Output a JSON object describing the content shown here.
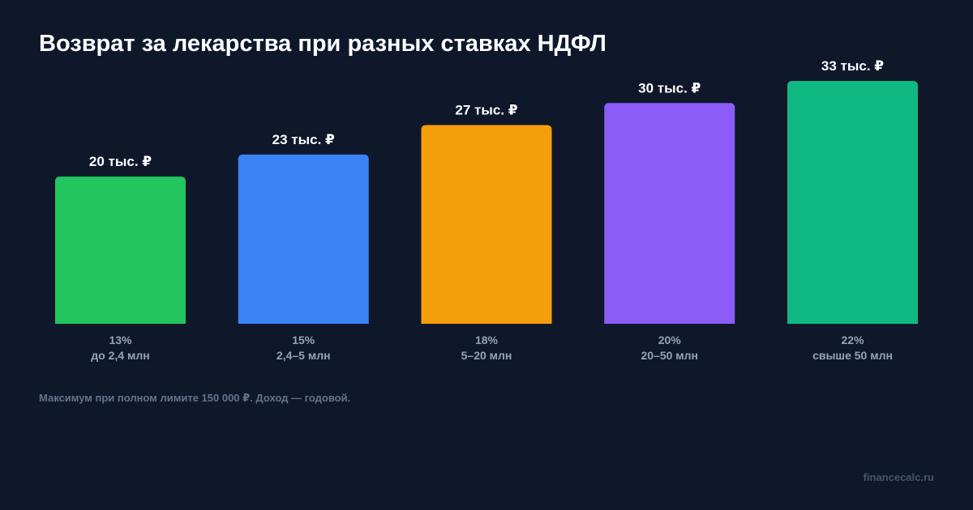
{
  "title": "Возврат за лекарства при разных ставках НДФЛ",
  "footnote": "Максимум при полном лимите 150 000 ₽. Доход — годовой.",
  "watermark": "financecalc.ru",
  "colors": {
    "background": "#0f172a",
    "label_muted": "#94a3b8"
  },
  "chart_data": {
    "type": "bar",
    "title": "Возврат за лекарства при разных ставках НДФЛ",
    "value_unit": "тыс. ₽",
    "ylim": [
      0,
      33
    ],
    "grid": false,
    "categories": [
      {
        "rate": "13%",
        "income": "до 2,4 млн"
      },
      {
        "rate": "15%",
        "income": "2,4–5 млн"
      },
      {
        "rate": "18%",
        "income": "5–20 млн"
      },
      {
        "rate": "20%",
        "income": "20–50 млн"
      },
      {
        "rate": "22%",
        "income": "свыше 50 млн"
      }
    ],
    "values": [
      20,
      23,
      27,
      30,
      33
    ],
    "value_labels": [
      "20 тыс. ₽",
      "23 тыс. ₽",
      "27 тыс. ₽",
      "30 тыс. ₽",
      "33 тыс. ₽"
    ],
    "bar_colors": [
      "#22c55e",
      "#3b82f6",
      "#f59e0b",
      "#8b5cf6",
      "#10b981"
    ]
  }
}
